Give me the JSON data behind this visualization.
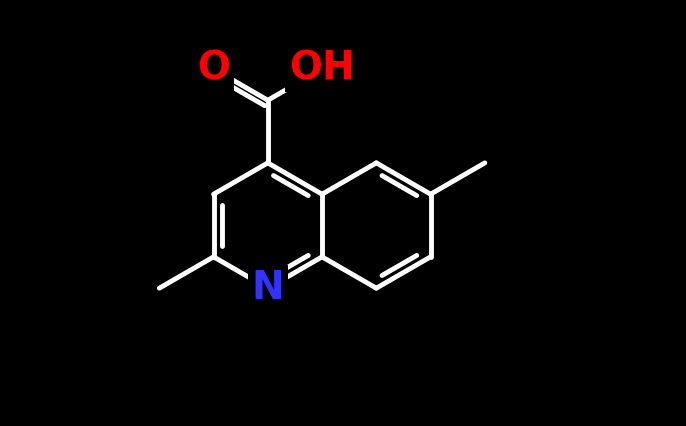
{
  "background_color": "#000000",
  "bond_color": "#ffffff",
  "bond_width": 3.5,
  "atom_O_color": "#ff0000",
  "atom_N_color": "#3333ff",
  "font_size_atom": 28,
  "fig_width": 6.86,
  "fig_height": 4.26,
  "dpi": 100,
  "xlim": [
    -2.0,
    5.0
  ],
  "ylim": [
    -3.0,
    3.8
  ]
}
